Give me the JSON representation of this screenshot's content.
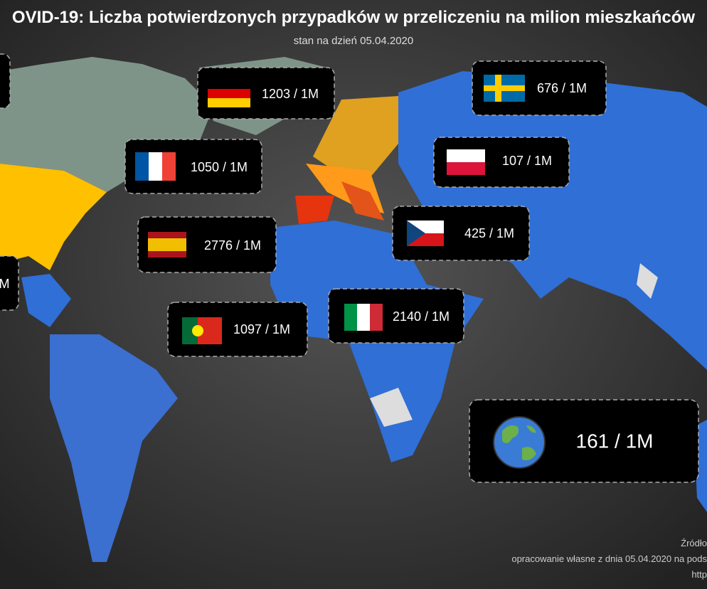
{
  "header": {
    "title": "OVID-19: Liczba potwierdzonych przypadków w przeliczeniu na milion mieszkańców",
    "subtitle": "stan na dzień 05.04.2020"
  },
  "callouts": {
    "germany": "1203 / 1M",
    "sweden": "676 / 1M",
    "france": "1050 / 1M",
    "poland": "107 / 1M",
    "spain": "2776 / 1M",
    "czechia": "425 / 1M",
    "portugal": "1097 / 1M",
    "italy": "2140 / 1M",
    "world": "161 / 1M",
    "left_clipped": "M"
  },
  "footer": {
    "source": "Źródło",
    "note": "opracowanie własne z dnia 05.04.2020 na pods",
    "link": "http"
  }
}
